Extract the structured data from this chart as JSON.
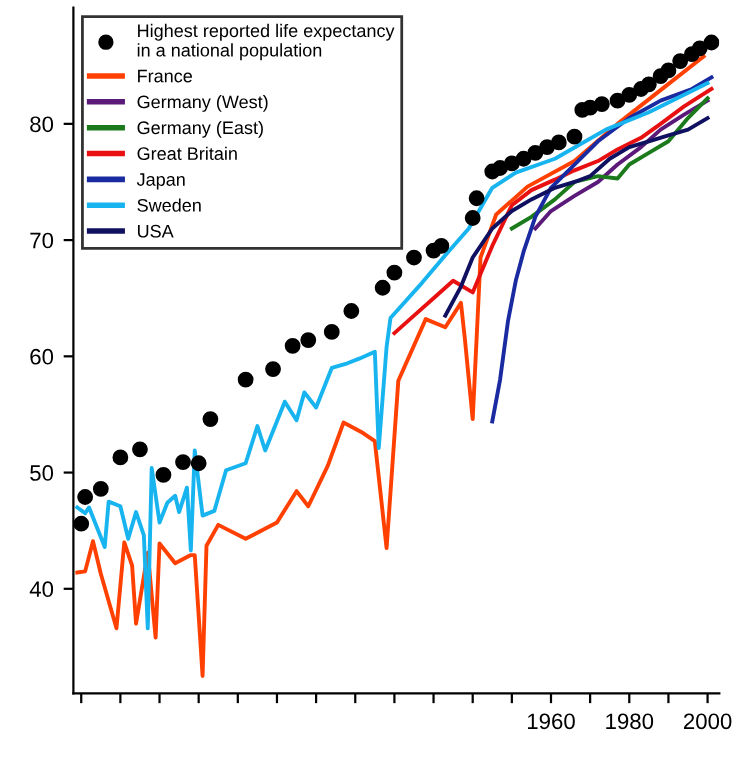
{
  "chart_data": {
    "type": "line",
    "xlim": [
      1838,
      2003
    ],
    "ylim": [
      31,
      90
    ],
    "xticks": [
      {
        "value": 1840,
        "label": null
      },
      {
        "value": 1850,
        "label": null
      },
      {
        "value": 1860,
        "label": null
      },
      {
        "value": 1870,
        "label": null
      },
      {
        "value": 1880,
        "label": null
      },
      {
        "value": 1890,
        "label": null
      },
      {
        "value": 1900,
        "label": null
      },
      {
        "value": 1910,
        "label": null
      },
      {
        "value": 1920,
        "label": null
      },
      {
        "value": 1930,
        "label": null
      },
      {
        "value": 1940,
        "label": null
      },
      {
        "value": 1950,
        "label": null
      },
      1960,
      {
        "value": 1970,
        "label": null
      },
      1980,
      {
        "value": 1990,
        "label": null
      },
      2000
    ],
    "yticks": [
      40,
      50,
      60,
      70,
      80
    ],
    "grid": false,
    "legend": "top left",
    "line_style": "solid",
    "series": [
      {
        "name": "Highest reported life expectancy\nin a national population",
        "type": "scatter",
        "marker": "circle",
        "color": "#000000",
        "x": [
          1840,
          1841,
          1845,
          1850,
          1855,
          1861,
          1866,
          1870,
          1873,
          1882,
          1889,
          1894,
          1898,
          1904,
          1909,
          1917,
          1920,
          1925,
          1930,
          1932,
          1940,
          1941,
          1945,
          1947,
          1950,
          1953,
          1956,
          1959,
          1962,
          1966,
          1968,
          1970,
          1973,
          1977,
          1980,
          1983,
          1985,
          1988,
          1990,
          1993,
          1996,
          1998,
          2001
        ],
        "values": [
          45.6,
          47.9,
          48.6,
          51.3,
          52.0,
          49.8,
          50.9,
          50.8,
          54.6,
          58.0,
          58.9,
          60.9,
          61.4,
          62.1,
          63.9,
          65.9,
          67.2,
          68.5,
          69.1,
          69.5,
          71.9,
          73.6,
          75.9,
          76.2,
          76.6,
          77.0,
          77.5,
          78.0,
          78.4,
          78.9,
          81.2,
          81.4,
          81.7,
          82.0,
          82.5,
          83.0,
          83.4,
          84.1,
          84.6,
          85.4,
          86.0,
          86.5,
          87.0
        ]
      },
      {
        "name": "France",
        "color": "#ff4000",
        "x": [
          1839,
          1841,
          1843,
          1845,
          1849,
          1851,
          1853,
          1854,
          1857,
          1859,
          1860,
          1864,
          1868,
          1869,
          1871,
          1872,
          1875,
          1882,
          1890,
          1895,
          1898,
          1903,
          1907,
          1912,
          1915,
          1918,
          1921,
          1928,
          1933,
          1937,
          1938,
          1940,
          1942,
          1946,
          1954,
          1966,
          1977,
          1988,
          1999
        ],
        "values": [
          41.4,
          41.5,
          44.1,
          41.3,
          36.6,
          44.0,
          42.0,
          37.0,
          43.1,
          35.8,
          43.9,
          42.2,
          42.9,
          42.9,
          32.5,
          43.7,
          45.5,
          44.3,
          45.7,
          48.4,
          47.1,
          50.6,
          54.3,
          53.4,
          52.7,
          43.5,
          57.9,
          63.2,
          62.5,
          64.6,
          61.5,
          54.6,
          68.5,
          72.2,
          74.6,
          76.8,
          80.0,
          82.9,
          85.8
        ]
      },
      {
        "name": "Germany (West)",
        "color": "#5b1a7a",
        "x": [
          1956,
          1960,
          1966,
          1972,
          1977,
          1983,
          1988,
          1994,
          2000
        ],
        "values": [
          71.0,
          72.5,
          73.8,
          75.0,
          76.5,
          78.0,
          79.5,
          80.8,
          82.0
        ]
      },
      {
        "name": "Germany (East)",
        "color": "#1b7a1b",
        "x": [
          1950,
          1955,
          1961,
          1966,
          1972,
          1977,
          1980,
          1985,
          1990,
          1995,
          2000
        ],
        "values": [
          71.0,
          72.0,
          73.5,
          75.0,
          75.5,
          75.3,
          76.5,
          77.5,
          78.5,
          80.5,
          82.2
        ]
      },
      {
        "name": "Great Britain",
        "color": "#e81010",
        "x": [
          1920,
          1925,
          1930,
          1935,
          1940,
          1945,
          1950,
          1955,
          1961,
          1966,
          1972,
          1977,
          1983,
          1988,
          1994,
          2001
        ],
        "values": [
          62.0,
          63.5,
          65.0,
          66.5,
          65.5,
          69.5,
          73.0,
          74.3,
          75.2,
          76.0,
          76.8,
          77.8,
          78.8,
          80.0,
          81.5,
          83.0
        ]
      },
      {
        "name": "Japan",
        "color": "#1a2aa0",
        "x": [
          1945,
          1947,
          1949,
          1951,
          1953,
          1956,
          1960,
          1966,
          1972,
          1980,
          1988,
          1996,
          2001
        ],
        "values": [
          54.4,
          58.0,
          63.0,
          66.5,
          69.0,
          72.0,
          74.5,
          76.5,
          78.5,
          80.5,
          82.0,
          83.0,
          84.0
        ]
      },
      {
        "name": "Sweden",
        "color": "#18b4f0",
        "x": [
          1839,
          1841,
          1842,
          1846,
          1847,
          1850,
          1852,
          1854,
          1856,
          1857,
          1858,
          1860,
          1862,
          1864,
          1865,
          1867,
          1868,
          1869,
          1871,
          1874,
          1877,
          1882,
          1885,
          1887,
          1892,
          1895,
          1897,
          1900,
          1904,
          1908,
          1911,
          1915,
          1916,
          1918,
          1919,
          1927,
          1933,
          1939,
          1945,
          1951,
          1961,
          1974,
          1985,
          2000
        ],
        "values": [
          47.0,
          46.5,
          47.0,
          43.6,
          47.5,
          47.1,
          44.3,
          46.6,
          44.6,
          36.6,
          50.4,
          45.7,
          47.4,
          48.0,
          46.6,
          48.7,
          43.3,
          51.9,
          46.3,
          46.7,
          50.2,
          50.8,
          54.0,
          51.9,
          56.1,
          54.5,
          56.9,
          55.6,
          59.0,
          59.4,
          59.8,
          60.4,
          52.1,
          60.8,
          63.3,
          66.3,
          68.7,
          71.0,
          74.5,
          75.8,
          77.0,
          79.5,
          81.0,
          83.5
        ]
      },
      {
        "name": "USA",
        "color": "#101060",
        "x": [
          1933,
          1937,
          1940,
          1945,
          1950,
          1955,
          1961,
          1966,
          1970,
          1975,
          1980,
          1985,
          1990,
          1995,
          2000
        ],
        "values": [
          63.5,
          66.0,
          68.5,
          71.0,
          72.5,
          73.5,
          74.5,
          75.0,
          75.5,
          77.0,
          78.0,
          78.5,
          79.0,
          79.5,
          80.5
        ]
      }
    ]
  }
}
